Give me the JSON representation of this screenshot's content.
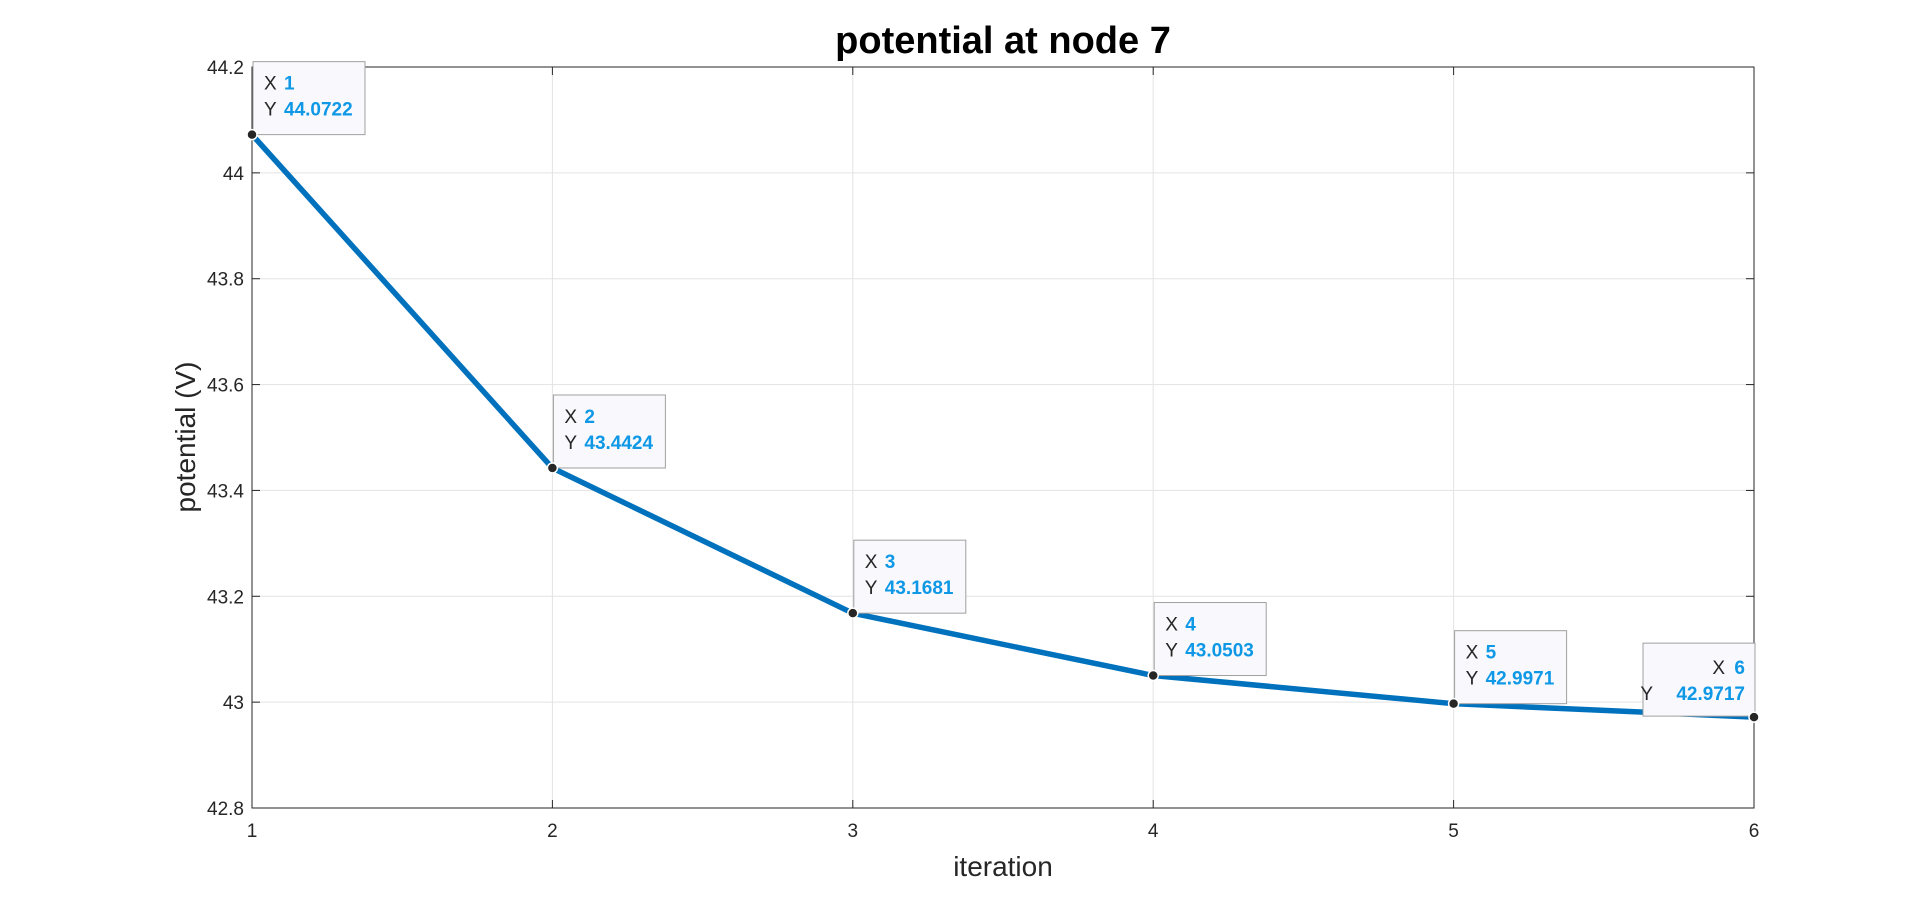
{
  "chart_data": {
    "type": "line",
    "title": "potential at node 7",
    "xlabel": "iteration",
    "ylabel": "potential (V)",
    "xlim": [
      1,
      6
    ],
    "ylim": [
      42.8,
      44.2
    ],
    "xticks": [
      1,
      2,
      3,
      4,
      5,
      6
    ],
    "yticks": [
      42.8,
      43,
      43.2,
      43.4,
      43.6,
      43.8,
      44,
      44.2
    ],
    "xtick_labels": [
      "1",
      "2",
      "3",
      "4",
      "5",
      "6"
    ],
    "ytick_labels": [
      "42.8",
      "43",
      "43.2",
      "43.4",
      "43.6",
      "43.8",
      "44",
      "44.2"
    ],
    "grid": true,
    "series": [
      {
        "x": [
          1,
          2,
          3,
          4,
          5,
          6
        ],
        "values": [
          44.0722,
          43.4424,
          43.1681,
          43.0503,
          42.9971,
          42.9717
        ],
        "color": "#0072bd"
      }
    ],
    "datatips": [
      {
        "x_label": "X",
        "y_label": "Y",
        "x_text": "1",
        "y_text": "44.0722",
        "x": 1,
        "y": 44.0722,
        "align": "left"
      },
      {
        "x_label": "X",
        "y_label": "Y",
        "x_text": "2",
        "y_text": "43.4424",
        "x": 2,
        "y": 43.4424,
        "align": "left"
      },
      {
        "x_label": "X",
        "y_label": "Y",
        "x_text": "3",
        "y_text": "43.1681",
        "x": 3,
        "y": 43.1681,
        "align": "left"
      },
      {
        "x_label": "X",
        "y_label": "Y",
        "x_text": "4",
        "y_text": "43.0503",
        "x": 4,
        "y": 43.0503,
        "align": "left"
      },
      {
        "x_label": "X",
        "y_label": "Y",
        "x_text": "5",
        "y_text": "42.9971",
        "x": 5,
        "y": 42.9971,
        "align": "left"
      },
      {
        "x_label": "X",
        "y_label": "Y",
        "x_text": "6",
        "y_text": "42.9717",
        "x": 6,
        "y": 42.9717,
        "align": "right"
      }
    ]
  }
}
